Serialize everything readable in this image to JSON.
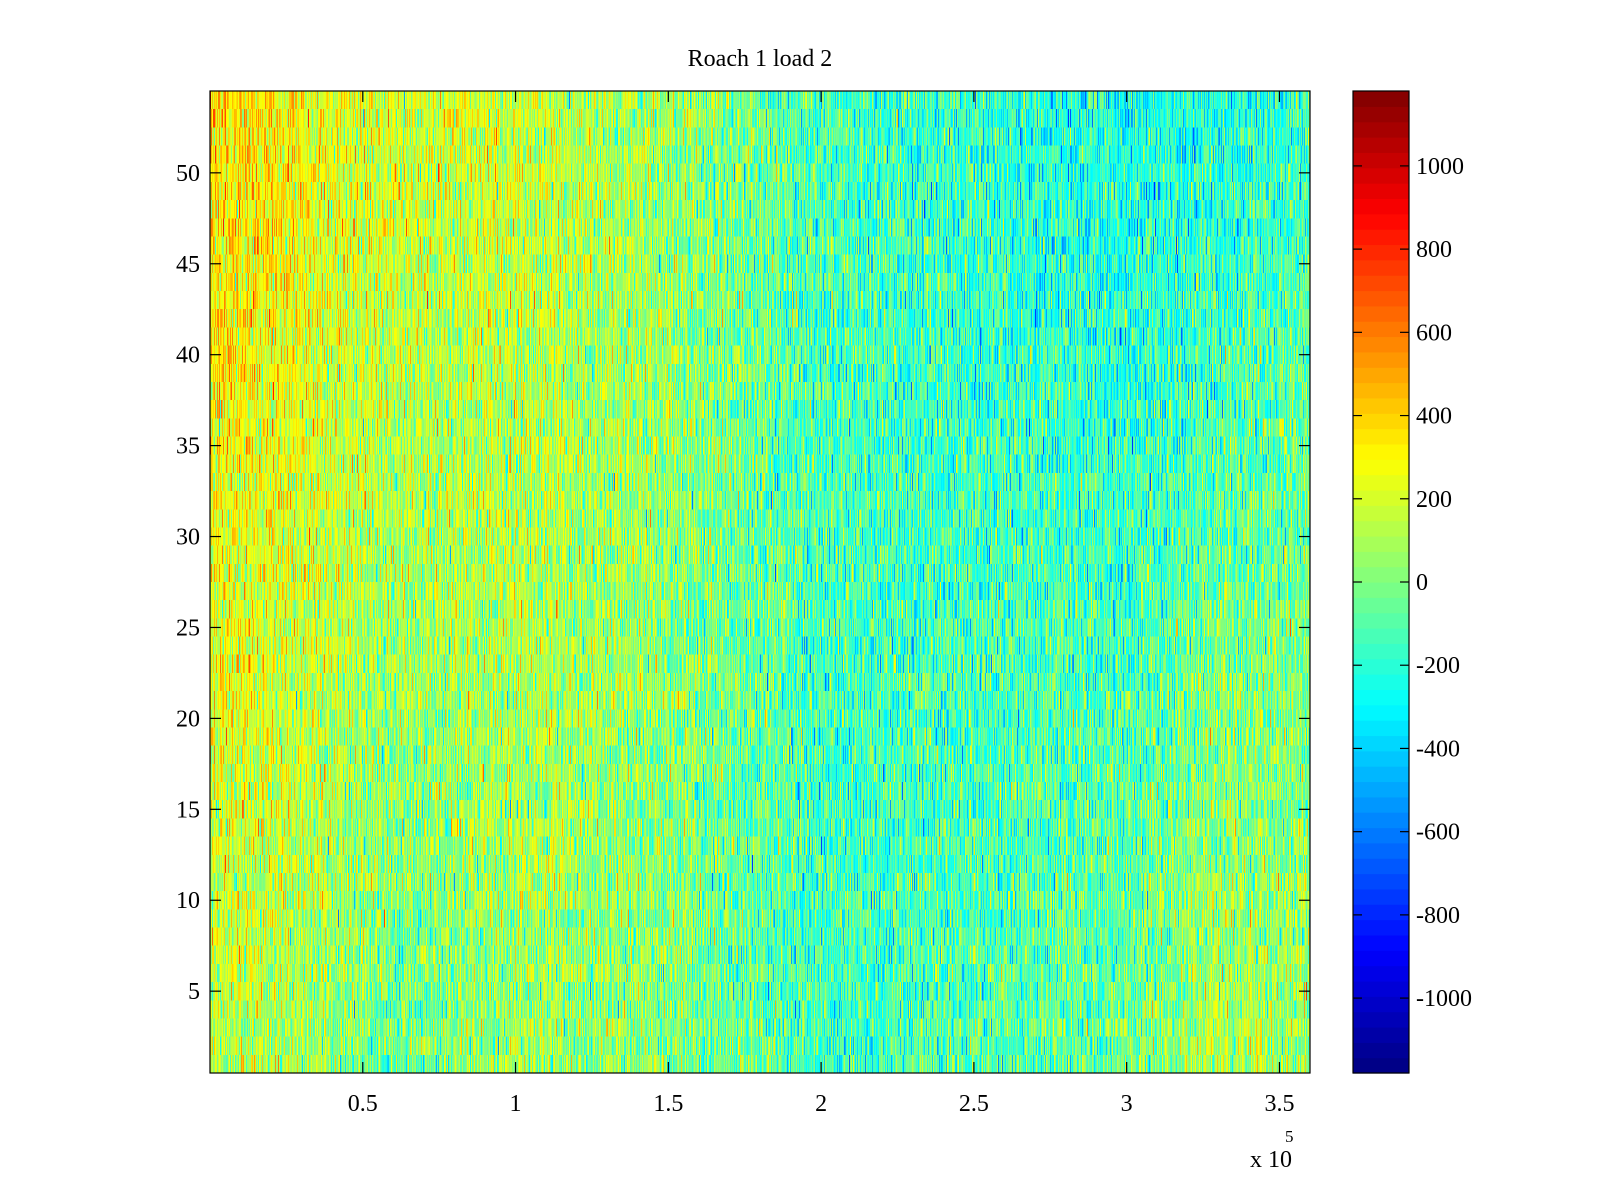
{
  "chart_data": {
    "type": "heatmap",
    "title": "Roach 1 load 2",
    "xlabel": "",
    "ylabel": "",
    "x_range": [
      0,
      360000
    ],
    "y_range": [
      0.5,
      54.5
    ],
    "x_ticks": [
      50000,
      100000,
      150000,
      200000,
      250000,
      300000,
      350000
    ],
    "x_tick_labels": [
      "0.5",
      "1",
      "1.5",
      "2",
      "2.5",
      "3",
      "3.5"
    ],
    "x_exponent_label": {
      "base": "x 10",
      "power": "5"
    },
    "y_ticks": [
      5,
      10,
      15,
      20,
      25,
      30,
      35,
      40,
      45,
      50
    ],
    "y_tick_labels": [
      "5",
      "10",
      "15",
      "20",
      "25",
      "30",
      "35",
      "40",
      "45",
      "50"
    ],
    "rows": 54,
    "colormap": "jet",
    "color_range": [
      -1180,
      1180
    ],
    "colorbar_ticks": [
      1000,
      800,
      600,
      400,
      200,
      0,
      -200,
      -400,
      -600,
      -800,
      -1000
    ],
    "colorbar_tick_labels": [
      "1000",
      "800",
      "600",
      "400",
      "200",
      "0",
      "-200",
      "-400",
      "-600",
      "-800",
      "-1000"
    ],
    "trend_mean_profile": {
      "x": [
        0,
        30000,
        60000,
        100000,
        150000,
        200000,
        250000,
        300000,
        330000,
        360000
      ],
      "value_top_rows": [
        380,
        300,
        200,
        180,
        60,
        -120,
        -180,
        -260,
        -220,
        -160
      ],
      "value_bottom_rows": [
        140,
        100,
        -60,
        60,
        20,
        -160,
        -100,
        -40,
        120,
        80
      ]
    },
    "grid": false,
    "colorbar_position": "right"
  }
}
